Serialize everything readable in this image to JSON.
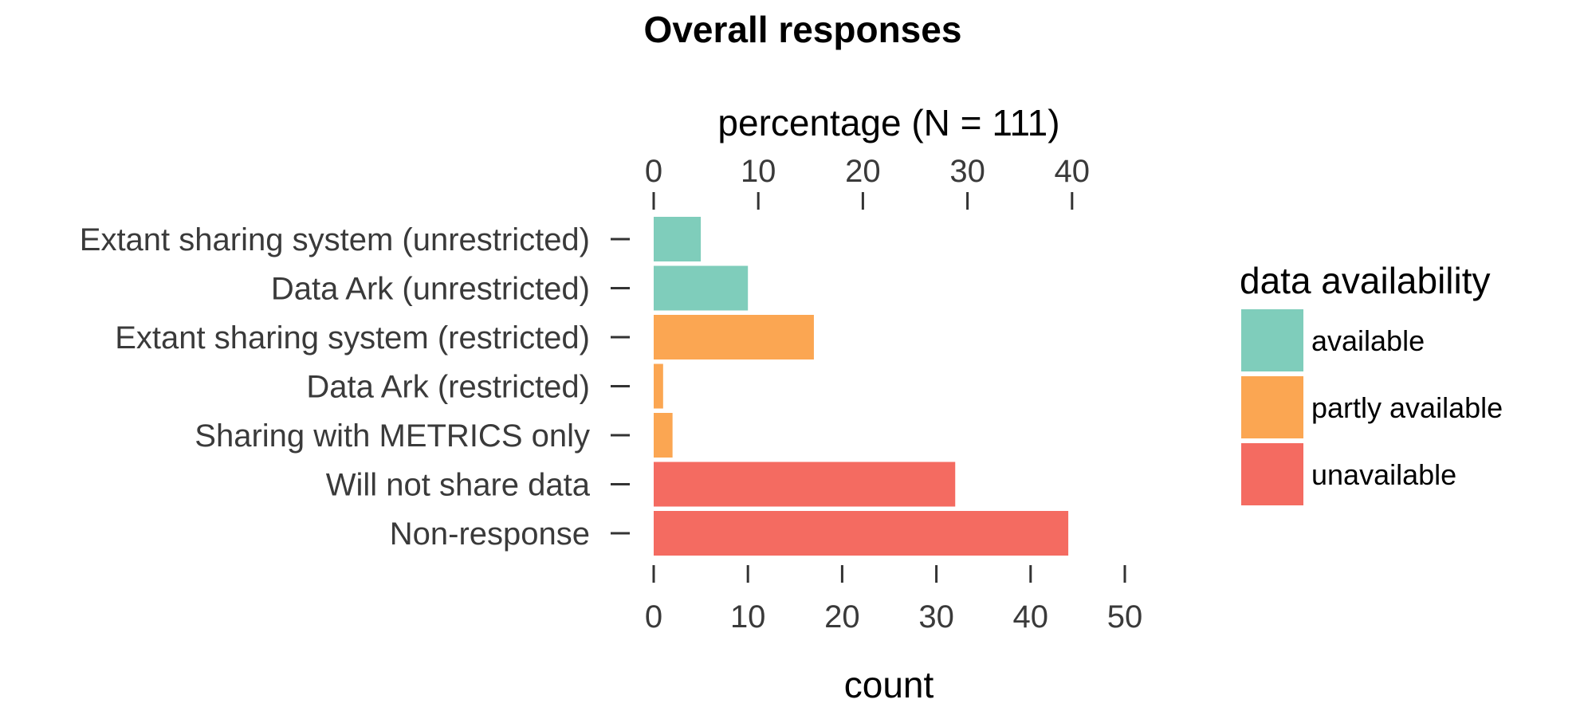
{
  "chart_data": {
    "type": "bar",
    "orientation": "horizontal",
    "title": "Overall responses",
    "categories": [
      "Extant sharing system (unrestricted)",
      "Data Ark (unrestricted)",
      "Extant sharing system (restricted)",
      "Data Ark (restricted)",
      "Sharing with METRICS only",
      "Will not share data",
      "Non-response"
    ],
    "values": [
      5,
      10,
      17,
      1,
      2,
      32,
      44
    ],
    "availability": [
      "available",
      "available",
      "partly available",
      "partly available",
      "partly available",
      "unavailable",
      "unavailable"
    ],
    "xlabel": "count",
    "xlim": [
      0,
      50
    ],
    "xticks": [
      0,
      10,
      20,
      30,
      40,
      50
    ],
    "secondary_axis": {
      "label": "percentage (N = 111)",
      "ticks": [
        0,
        10,
        20,
        30,
        40
      ],
      "total": 111
    },
    "legend": {
      "title": "data availability",
      "position": "right",
      "items": [
        {
          "label": "available",
          "color": "#7fcdbb"
        },
        {
          "label": "partly available",
          "color": "#fba652"
        },
        {
          "label": "unavailable",
          "color": "#f46b61"
        }
      ]
    },
    "grid": false
  }
}
